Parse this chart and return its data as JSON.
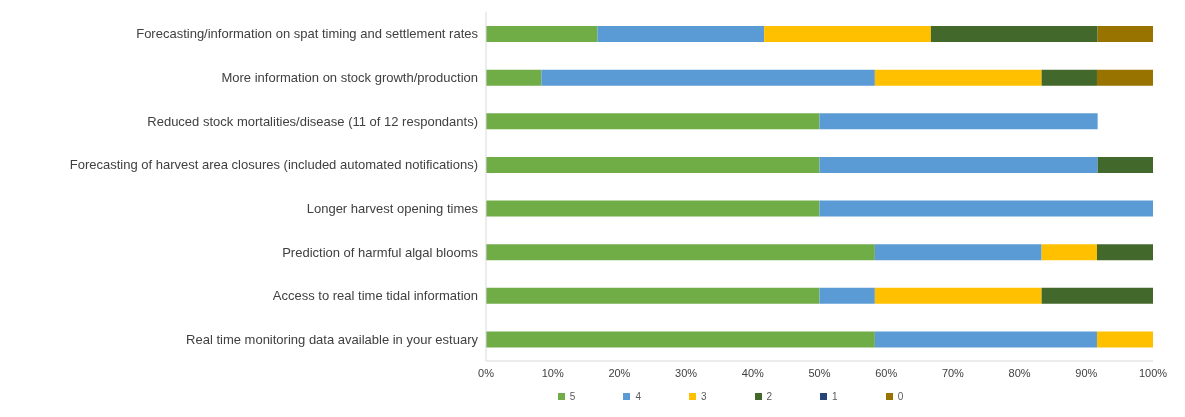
{
  "chart_data": {
    "type": "bar",
    "orientation": "horizontal",
    "stacked": true,
    "categories": [
      "Forecasting/information on spat timing and settlement rates",
      "More information on stock growth/production",
      "Reduced stock mortalities/disease (11 of 12 respondants)",
      "Forecasting of harvest area closures (included automated notifications)",
      "Longer harvest opening times",
      "Prediction of harmful algal blooms",
      "Access to real time tidal information",
      "Real time monitoring data available in your estuary"
    ],
    "series": [
      {
        "name": "5",
        "color": "#70ad47",
        "values": [
          16.7,
          8.3,
          50,
          50,
          50,
          58.3,
          50,
          58.3
        ]
      },
      {
        "name": "4",
        "color": "#5b9bd5",
        "values": [
          25,
          50,
          41.7,
          41.7,
          50,
          25,
          8.3,
          33.3
        ]
      },
      {
        "name": "3",
        "color": "#ffc000",
        "values": [
          25,
          25,
          0,
          0,
          0,
          8.3,
          25,
          8.4
        ]
      },
      {
        "name": "2",
        "color": "#43682b",
        "values": [
          25,
          8.3,
          0,
          8.3,
          0,
          8.4,
          16.7,
          0
        ]
      },
      {
        "name": "1",
        "color": "#264478",
        "values": [
          0,
          0,
          0,
          0,
          0,
          0,
          0,
          0
        ]
      },
      {
        "name": "0",
        "color": "#997300",
        "values": [
          8.3,
          8.4,
          0,
          0,
          0,
          0,
          0,
          0
        ]
      }
    ],
    "xlim": [
      0,
      100
    ],
    "xticks": [
      {
        "value": 0,
        "label": "0%"
      },
      {
        "value": 10,
        "label": "10%"
      },
      {
        "value": 20,
        "label": "20%"
      },
      {
        "value": 30,
        "label": "30%"
      },
      {
        "value": 40,
        "label": "40%"
      },
      {
        "value": 50,
        "label": "50%"
      },
      {
        "value": 60,
        "label": "60%"
      },
      {
        "value": 70,
        "label": "70%"
      },
      {
        "value": 80,
        "label": "80%"
      },
      {
        "value": 90,
        "label": "90%"
      },
      {
        "value": 100,
        "label": "100%"
      }
    ],
    "grid": false,
    "legend": "bottom"
  }
}
